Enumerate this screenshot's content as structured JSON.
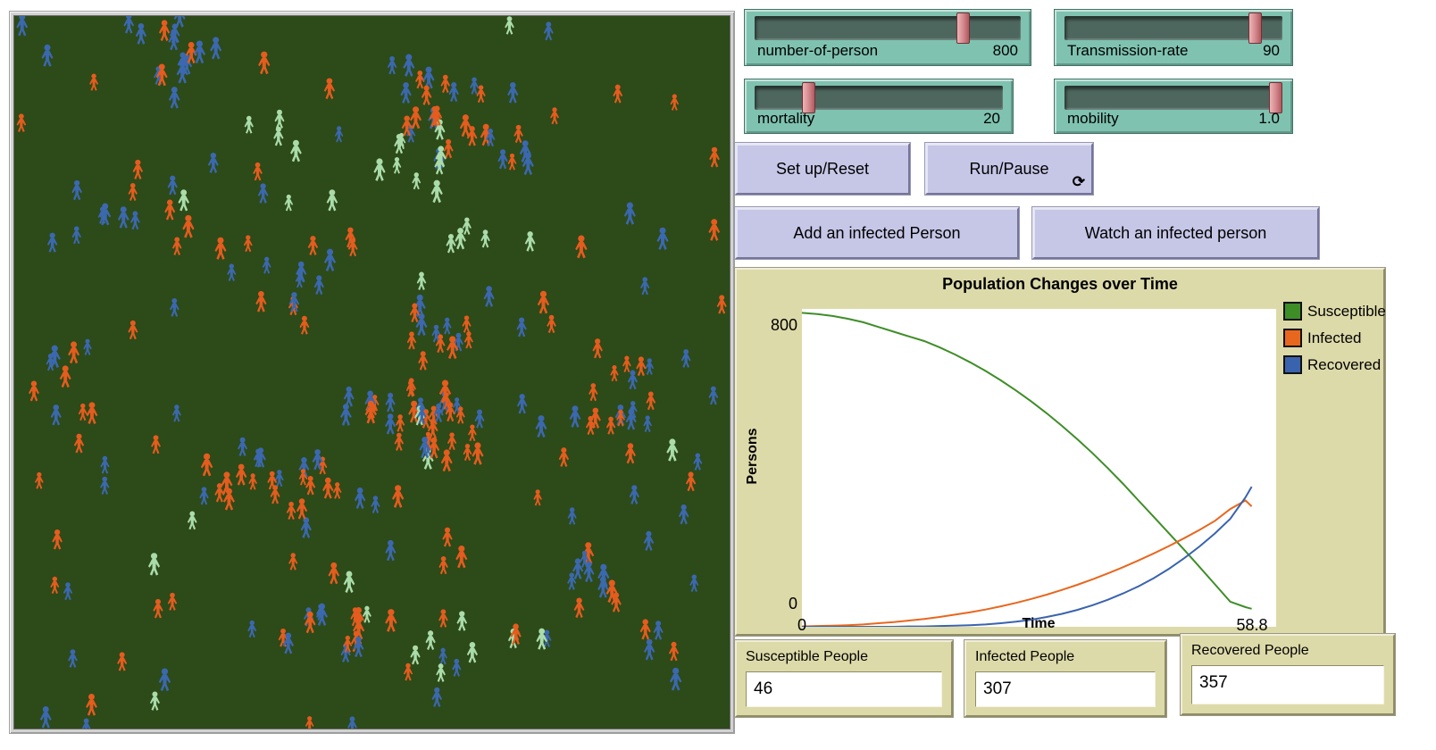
{
  "world": {
    "background": "#2d4a19",
    "seed": 11,
    "figures": {
      "susceptible": {
        "color": "#aadcaa",
        "count": 38
      },
      "infected": {
        "color": "#e45c1e",
        "count": 142
      },
      "recovered": {
        "color": "#3b68af",
        "count": 132
      }
    }
  },
  "sliders": [
    {
      "label": "number-of-person",
      "value": "800",
      "fraction": 0.8
    },
    {
      "label": "Transmission-rate",
      "value": "90",
      "fraction": 0.9
    },
    {
      "label": "mortality",
      "value": "20",
      "fraction": 0.2
    },
    {
      "label": "mobility",
      "value": "1.0",
      "fraction": 1.0
    }
  ],
  "buttons": [
    {
      "label": "Set up/Reset"
    },
    {
      "label": "Run/Pause",
      "forever_icon": "⟳"
    },
    {
      "label": "Add an infected Person"
    },
    {
      "label": "Watch an infected person"
    }
  ],
  "chart_data": {
    "type": "line",
    "title": "Population Changes over Time",
    "xlabel": "Time",
    "ylabel": "Persons",
    "xlim": [
      0,
      62
    ],
    "ylim": [
      0,
      810
    ],
    "x_tick_labels": [
      "0",
      "58.8"
    ],
    "y_tick_labels": [
      "0",
      "800"
    ],
    "grid": false,
    "legend_position": "top-right",
    "x": [
      0,
      2,
      4,
      6,
      8,
      10,
      12,
      14,
      16,
      18,
      20,
      22,
      24,
      26,
      28,
      30,
      32,
      34,
      36,
      38,
      40,
      42,
      44,
      46,
      48,
      50,
      52,
      54,
      56,
      58,
      58.8
    ],
    "series": [
      {
        "name": "Susceptible",
        "color": "#3e8e28",
        "values": [
          800,
          797,
          792,
          785,
          776,
          764,
          752,
          740,
          728,
          712,
          694,
          674,
          652,
          628,
          602,
          574,
          544,
          512,
          478,
          442,
          404,
          364,
          322,
          280,
          238,
          196,
          152,
          108,
          64,
          50,
          46
        ]
      },
      {
        "name": "Infected",
        "color": "#e8671e",
        "values": [
          1,
          2,
          3,
          4,
          6,
          9,
          12,
          16,
          20,
          25,
          31,
          37,
          44,
          52,
          61,
          71,
          82,
          94,
          107,
          121,
          136,
          152,
          169,
          187,
          206,
          226,
          247,
          270,
          300,
          322,
          307
        ]
      },
      {
        "name": "Recovered",
        "color": "#3a63ae",
        "values": [
          0,
          0,
          0,
          0,
          0,
          0,
          0,
          1,
          1,
          2,
          3,
          4,
          6,
          9,
          13,
          18,
          25,
          33,
          43,
          55,
          69,
          85,
          103,
          124,
          148,
          175,
          205,
          238,
          275,
          330,
          357
        ]
      }
    ]
  },
  "monitors": [
    {
      "label": "Susceptible People",
      "value": "46"
    },
    {
      "label": "Infected People",
      "value": "307"
    },
    {
      "label": "Recovered People",
      "value": "357"
    }
  ]
}
